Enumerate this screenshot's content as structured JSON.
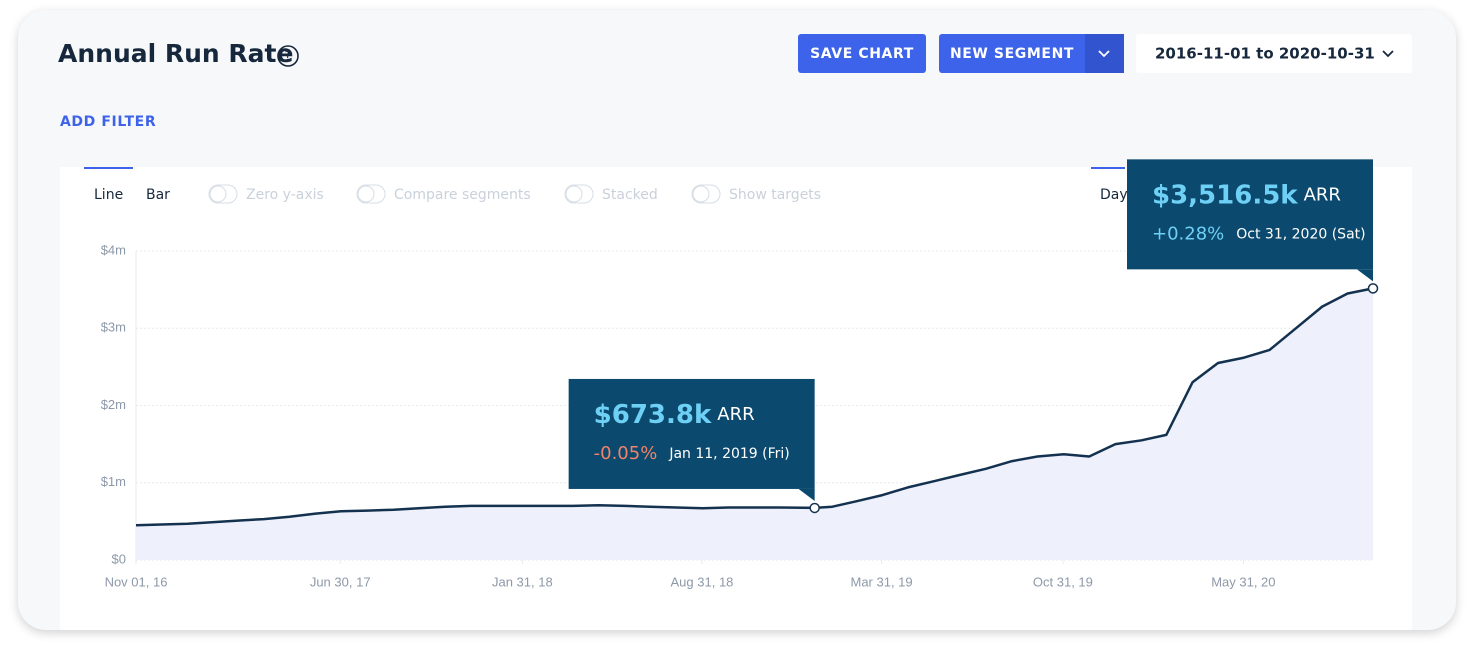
{
  "header": {
    "title": "Annual Run Rate",
    "save_button": "SAVE CHART",
    "segment_button": "NEW SEGMENT",
    "date_range": "2016-11-01 to 2020-10-31",
    "add_filter": "ADD FILTER"
  },
  "controls": {
    "chart_tabs": [
      "Line",
      "Bar"
    ],
    "toggles": [
      "Zero y-axis",
      "Compare segments",
      "Stacked",
      "Show targets"
    ],
    "period": "Day"
  },
  "chart_data": {
    "type": "line",
    "x": [
      "2016-11-01",
      "2016-12-01",
      "2017-01-01",
      "2017-02-01",
      "2017-03-01",
      "2017-04-01",
      "2017-05-01",
      "2017-06-01",
      "2017-07-01",
      "2017-08-01",
      "2017-09-01",
      "2017-10-01",
      "2017-11-01",
      "2017-12-01",
      "2018-01-01",
      "2018-02-01",
      "2018-03-01",
      "2018-04-01",
      "2018-05-01",
      "2018-06-01",
      "2018-07-01",
      "2018-08-01",
      "2018-09-01",
      "2018-10-01",
      "2018-11-01",
      "2018-12-01",
      "2019-01-11",
      "2019-02-01",
      "2019-03-01",
      "2019-04-01",
      "2019-05-01",
      "2019-06-01",
      "2019-07-01",
      "2019-08-01",
      "2019-09-01",
      "2019-10-01",
      "2019-11-01",
      "2019-12-01",
      "2020-01-01",
      "2020-02-01",
      "2020-03-01",
      "2020-04-01",
      "2020-05-01",
      "2020-06-01",
      "2020-07-01",
      "2020-08-01",
      "2020-09-01",
      "2020-10-01",
      "2020-10-31"
    ],
    "series": [
      {
        "name": "ARR",
        "color": "#14324f",
        "fill": "#eef1fb",
        "values": [
          450000,
          460000,
          470000,
          490000,
          510000,
          530000,
          560000,
          600000,
          630000,
          640000,
          650000,
          670000,
          690000,
          700000,
          700000,
          700000,
          700000,
          700000,
          710000,
          700000,
          690000,
          680000,
          670000,
          680000,
          680000,
          680000,
          673800,
          690000,
          760000,
          840000,
          940000,
          1020000,
          1100000,
          1180000,
          1280000,
          1340000,
          1370000,
          1340000,
          1500000,
          1550000,
          1620000,
          2300000,
          2550000,
          2620000,
          2720000,
          3000000,
          3280000,
          3450000,
          3516500
        ]
      }
    ],
    "xlim": [
      "2016-11-01",
      "2020-10-31"
    ],
    "xticks": [
      {
        "value": "2016-11-01",
        "label": "Nov 01, 16"
      },
      {
        "value": "2017-06-30",
        "label": "Jun 30, 17"
      },
      {
        "value": "2018-01-31",
        "label": "Jan 31, 18"
      },
      {
        "value": "2018-08-31",
        "label": "Aug 31, 18"
      },
      {
        "value": "2019-03-31",
        "label": "Mar 31, 19"
      },
      {
        "value": "2019-10-31",
        "label": "Oct 31, 19"
      },
      {
        "value": "2020-05-31",
        "label": "May 31, 20"
      }
    ],
    "ylim": [
      0,
      4000000
    ],
    "yticks": [
      {
        "value": 0,
        "label": "$0"
      },
      {
        "value": 1000000,
        "label": "$1m"
      },
      {
        "value": 2000000,
        "label": "$2m"
      },
      {
        "value": 3000000,
        "label": "$3m"
      },
      {
        "value": 4000000,
        "label": "$4m"
      }
    ],
    "grid": true,
    "annotations": [
      {
        "x": "2019-01-11",
        "value": 673800,
        "label": "$673.8k",
        "unit": "ARR",
        "change": "-0.05%",
        "change_color": "#f0836a",
        "date": "Jan 11, 2019 (Fri)"
      },
      {
        "x": "2020-10-31",
        "value": 3516500,
        "label": "$3,516.5k",
        "unit": "ARR",
        "change": "+0.28%",
        "change_color": "#6fd0f5",
        "date": "Oct 31, 2020 (Sat)"
      }
    ]
  }
}
